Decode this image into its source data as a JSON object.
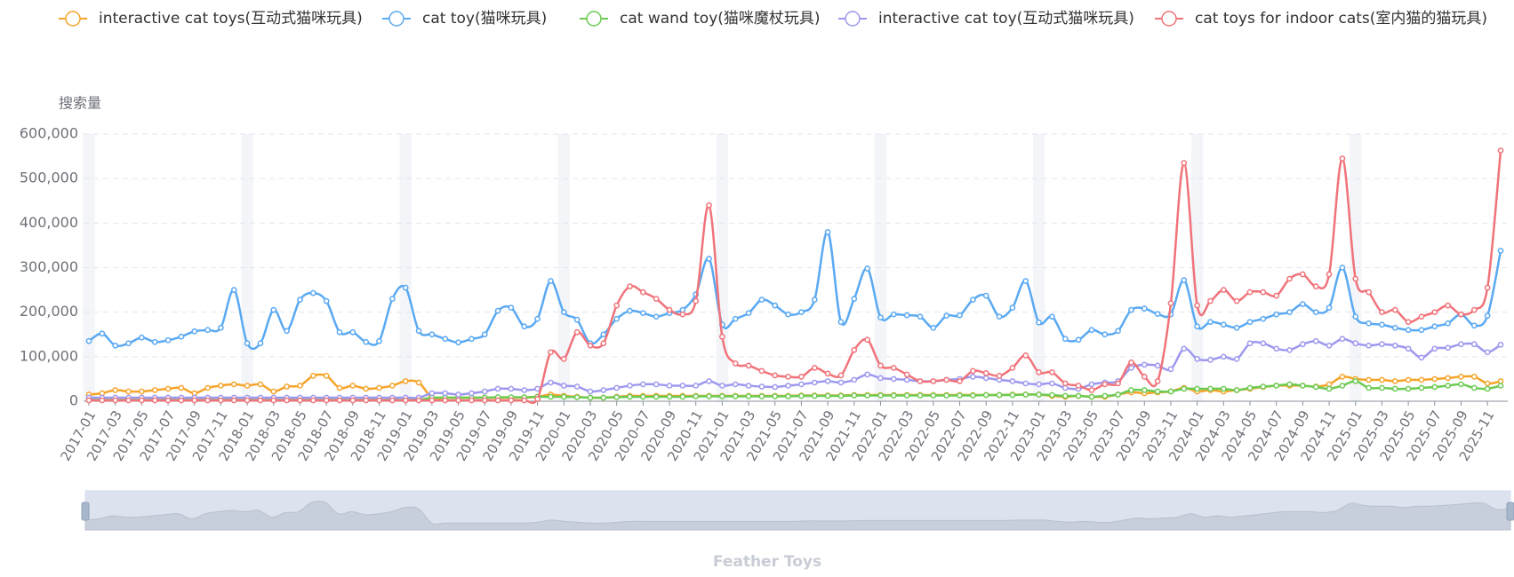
{
  "chart_data": {
    "type": "line",
    "title": "Feather Toys",
    "y_axis_label": "搜索量",
    "categories": [
      "2017-01",
      null,
      "2017-03",
      null,
      "2017-05",
      null,
      "2017-07",
      null,
      "2017-09",
      null,
      "2017-11",
      null,
      "2018-01",
      null,
      "2018-03",
      null,
      "2018-05",
      null,
      "2018-07",
      null,
      "2018-09",
      null,
      "2018-11",
      null,
      "2019-01",
      null,
      "2019-03",
      null,
      "2019-05",
      null,
      "2019-07",
      null,
      "2019-09",
      null,
      "2019-11",
      null,
      "2020-01",
      null,
      "2020-03",
      null,
      "2020-05",
      null,
      "2020-07",
      null,
      "2020-09",
      null,
      "2020-11",
      null,
      "2021-01",
      null,
      "2021-03",
      null,
      "2021-05",
      null,
      "2021-07",
      null,
      "2021-09",
      null,
      "2021-11",
      null,
      "2022-01",
      null,
      "2022-03",
      null,
      "2022-05",
      null,
      "2022-07",
      null,
      "2022-09",
      null,
      "2022-11",
      null,
      "2023-01",
      null,
      "2023-03",
      null,
      "2023-05",
      null,
      "2023-07",
      null,
      "2023-09",
      null,
      "2023-11",
      null,
      "2024-01",
      null,
      "2024-03",
      null,
      "2024-05",
      null,
      "2024-07",
      null,
      "2024-09",
      null,
      "2024-11",
      null,
      "2025-01",
      null,
      "2025-03",
      null,
      "2025-05",
      null,
      "2025-07",
      null,
      "2025-09",
      null,
      "2025-11",
      null
    ],
    "series": [
      {
        "name": "interactive cat toys(互动式猫咪玩具)",
        "color": "#f5a42a",
        "values": [
          15000,
          18000,
          25000,
          22000,
          22000,
          25000,
          28000,
          30000,
          18000,
          30000,
          35000,
          38000,
          35000,
          38000,
          22000,
          33000,
          35000,
          57000,
          57000,
          30000,
          35000,
          28000,
          30000,
          35000,
          45000,
          42000,
          8000,
          8000,
          8000,
          8000,
          8000,
          8000,
          8000,
          8000,
          10000,
          15000,
          12000,
          10000,
          8000,
          8000,
          10000,
          12000,
          12000,
          12000,
          12000,
          12000,
          12000,
          12000,
          12000,
          12000,
          12000,
          12000,
          12000,
          12000,
          13000,
          13000,
          13000,
          13000,
          14000,
          14000,
          14000,
          14000,
          14000,
          14000,
          14000,
          14000,
          14000,
          14000,
          14000,
          14000,
          15000,
          15000,
          15000,
          12000,
          10000,
          12000,
          10000,
          10000,
          15000,
          20000,
          18000,
          20000,
          22000,
          30000,
          22000,
          25000,
          22000,
          25000,
          28000,
          32000,
          35000,
          35000,
          35000,
          33000,
          38000,
          55000,
          50000,
          48000,
          48000,
          45000,
          48000,
          48000,
          50000,
          52000,
          55000,
          55000,
          40000,
          45000
        ]
      },
      {
        "name": "cat toy(猫咪玩具)",
        "color": "#5aa9f2",
        "values": [
          135000,
          152000,
          125000,
          130000,
          143000,
          133000,
          137000,
          145000,
          157000,
          160000,
          165000,
          250000,
          130000,
          130000,
          205000,
          158000,
          228000,
          243000,
          225000,
          155000,
          155000,
          133000,
          135000,
          230000,
          255000,
          158000,
          150000,
          140000,
          132000,
          140000,
          150000,
          203000,
          210000,
          168000,
          185000,
          270000,
          200000,
          183000,
          130000,
          150000,
          185000,
          203000,
          198000,
          190000,
          198000,
          205000,
          240000,
          320000,
          172000,
          185000,
          198000,
          228000,
          215000,
          195000,
          200000,
          228000,
          380000,
          178000,
          230000,
          298000,
          188000,
          195000,
          193000,
          190000,
          165000,
          192000,
          193000,
          228000,
          237000,
          190000,
          210000,
          270000,
          177000,
          190000,
          140000,
          138000,
          160000,
          150000,
          158000,
          205000,
          208000,
          196000,
          195000,
          272000,
          168000,
          178000,
          172000,
          165000,
          178000,
          185000,
          195000,
          200000,
          218000,
          200000,
          210000,
          300000,
          190000,
          175000,
          172000,
          165000,
          160000,
          160000,
          168000,
          175000,
          195000,
          170000,
          192000,
          338000
        ]
      },
      {
        "name": "cat wand toy(猫咪魔杖玩具)",
        "color": "#6ccb52",
        "values": [
          3000,
          3000,
          3000,
          3000,
          3000,
          3000,
          3000,
          3000,
          3000,
          3000,
          3000,
          3000,
          3000,
          3000,
          3000,
          3000,
          3000,
          3000,
          3000,
          3000,
          3000,
          3000,
          3000,
          3000,
          3000,
          3000,
          8000,
          8000,
          8000,
          8000,
          8000,
          9000,
          9000,
          9000,
          10000,
          10000,
          10000,
          9000,
          8000,
          8000,
          9000,
          10000,
          10000,
          10000,
          10000,
          10000,
          11000,
          11000,
          11000,
          11000,
          11000,
          11000,
          11000,
          11000,
          12000,
          12000,
          12000,
          12000,
          13000,
          13000,
          13000,
          13000,
          13000,
          13000,
          13000,
          13000,
          13000,
          13000,
          14000,
          14000,
          14000,
          15000,
          15000,
          14000,
          12000,
          12000,
          10000,
          12000,
          15000,
          25000,
          25000,
          22000,
          22000,
          28000,
          28000,
          28000,
          28000,
          25000,
          30000,
          33000,
          35000,
          38000,
          35000,
          32000,
          28000,
          35000,
          45000,
          30000,
          30000,
          28000,
          28000,
          30000,
          32000,
          35000,
          38000,
          30000,
          28000,
          35000
        ]
      },
      {
        "name": "interactive cat toy(互动式猫咪玩具)",
        "color": "#9d98ee",
        "values": [
          8000,
          8000,
          8000,
          8000,
          8000,
          8000,
          8000,
          8000,
          8000,
          8000,
          8000,
          8000,
          8000,
          8000,
          8000,
          8000,
          8000,
          8000,
          8000,
          8000,
          8000,
          8000,
          8000,
          8000,
          8000,
          8000,
          18000,
          18000,
          15000,
          18000,
          22000,
          28000,
          28000,
          25000,
          28000,
          42000,
          35000,
          33000,
          22000,
          25000,
          30000,
          35000,
          38000,
          38000,
          35000,
          35000,
          35000,
          45000,
          35000,
          38000,
          35000,
          33000,
          32000,
          35000,
          38000,
          42000,
          45000,
          42000,
          48000,
          60000,
          52000,
          50000,
          48000,
          45000,
          45000,
          48000,
          50000,
          55000,
          52000,
          48000,
          45000,
          40000,
          38000,
          40000,
          30000,
          28000,
          38000,
          42000,
          45000,
          75000,
          82000,
          80000,
          72000,
          118000,
          95000,
          93000,
          100000,
          95000,
          130000,
          130000,
          118000,
          115000,
          128000,
          135000,
          125000,
          140000,
          130000,
          125000,
          128000,
          125000,
          118000,
          98000,
          118000,
          120000,
          128000,
          128000,
          110000,
          127000
        ]
      },
      {
        "name": "cat toys for indoor cats(室内猫的猫玩具)",
        "color": "#f0737a",
        "values": [
          2000,
          2000,
          2000,
          2000,
          2000,
          2000,
          2000,
          2000,
          2000,
          2000,
          2000,
          2000,
          2000,
          2000,
          2000,
          2000,
          2000,
          2000,
          2000,
          2000,
          2000,
          2000,
          2000,
          2000,
          2000,
          2000,
          2000,
          2000,
          2000,
          2000,
          2000,
          2000,
          2000,
          2000,
          5000,
          110000,
          95000,
          155000,
          125000,
          130000,
          215000,
          258000,
          245000,
          230000,
          205000,
          195000,
          225000,
          440000,
          145000,
          85000,
          80000,
          68000,
          58000,
          55000,
          55000,
          75000,
          62000,
          58000,
          115000,
          138000,
          80000,
          75000,
          60000,
          45000,
          45000,
          48000,
          45000,
          68000,
          63000,
          57000,
          75000,
          103000,
          65000,
          65000,
          40000,
          35000,
          25000,
          38000,
          40000,
          87000,
          55000,
          45000,
          220000,
          535000,
          215000,
          225000,
          250000,
          225000,
          245000,
          245000,
          237000,
          275000,
          285000,
          258000,
          285000,
          545000,
          275000,
          245000,
          200000,
          205000,
          178000,
          190000,
          200000,
          215000,
          195000,
          205000,
          255000,
          563000
        ]
      }
    ],
    "ylim": [
      0,
      600000
    ],
    "yticks": [
      0,
      {
        "value": 100000,
        "label": "100,000"
      },
      {
        "value": 200000,
        "label": "200,000"
      },
      {
        "value": 300000,
        "label": "300,000"
      },
      {
        "value": 400000,
        "label": "400,000"
      },
      {
        "value": 500000,
        "label": "500,000"
      },
      {
        "value": 600000,
        "label": "600,000"
      }
    ],
    "grid": true,
    "legend": "top"
  }
}
